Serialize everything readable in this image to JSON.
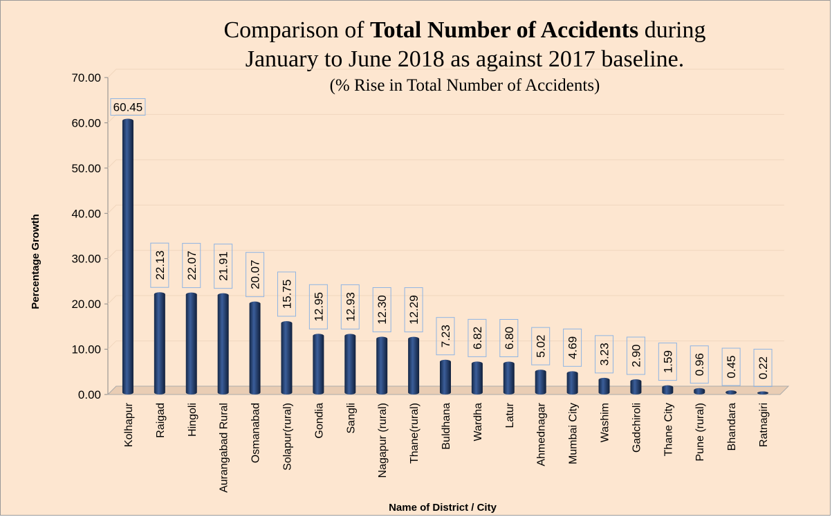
{
  "chart_data": {
    "type": "bar",
    "title": [
      "Comparison of",
      "Total Number of Accidents",
      "during",
      "January to June 2018 as against 2017 baseline."
    ],
    "subtitle": "(% Rise in Total Number of Accidents)",
    "y_label": "Percentage Growth",
    "x_label": "Name of District / City",
    "categories": [
      "Kolhapur",
      "Raigad",
      "Hingoli",
      "Aurangabad Rural",
      "Osmanabad",
      "Solapur(rural)",
      "Gondia",
      "Sangli",
      "Nagapur (rural)",
      "Thane(rural)",
      "Buldhana",
      "Wardha",
      "Latur",
      "Ahmednagar",
      "Mumbai City",
      "Washim",
      "Gadchiroli",
      "Thane City",
      "Pune (rural)",
      "Bhandara",
      "Ratnagiri"
    ],
    "values": [
      60.45,
      22.13,
      22.07,
      21.91,
      20.07,
      15.75,
      12.95,
      12.93,
      12.3,
      12.29,
      7.23,
      6.82,
      6.8,
      5.02,
      4.69,
      3.23,
      2.9,
      1.59,
      0.96,
      0.45,
      0.22
    ],
    "value_labels": [
      "60.45",
      "22.13",
      "22.07",
      "21.91",
      "20.07",
      "15.75",
      "12.95",
      "12.93",
      "12.30",
      "12.29",
      "7.23",
      "6.82",
      "6.80",
      "5.02",
      "4.69",
      "3.23",
      "2.90",
      "1.59",
      "0.96",
      "0.45",
      "0.22"
    ],
    "color": "#1f3864",
    "ylim": [
      0,
      70
    ],
    "yticks": [
      {
        "value": 0,
        "label": "0.00"
      },
      {
        "value": 10,
        "label": "10.00"
      },
      {
        "value": 20,
        "label": "20.00"
      },
      {
        "value": 30,
        "label": "30.00"
      },
      {
        "value": 40,
        "label": "40.00"
      },
      {
        "value": 50,
        "label": "50.00"
      },
      {
        "value": 60,
        "label": "60.00"
      },
      {
        "value": 70,
        "label": "70.00"
      }
    ],
    "grid": true
  }
}
